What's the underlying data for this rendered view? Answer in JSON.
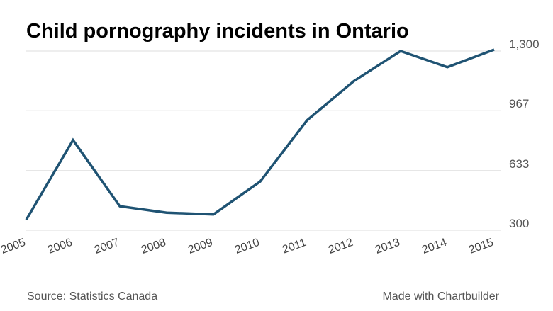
{
  "chart_data": {
    "type": "line",
    "title": "Child pornography incidents in Ontario",
    "xlabel": "",
    "ylabel": "",
    "x": [
      "2005",
      "2006",
      "2007",
      "2008",
      "2009",
      "2010",
      "2011",
      "2012",
      "2013",
      "2014",
      "2015"
    ],
    "series": [
      {
        "values": [
          358,
          803,
          434,
          398,
          388,
          572,
          913,
          1132,
          1300,
          1210,
          1308
        ]
      }
    ],
    "ylim": [
      300,
      1300
    ],
    "yticks": [
      300,
      633,
      967,
      1300
    ],
    "ytick_labels": [
      "300",
      "633",
      "967",
      "1,300"
    ],
    "y_axis_position": "right",
    "grid": true,
    "line_color": "#1f5373",
    "grid_color": "#dddddd"
  },
  "footer": {
    "source": "Source: Statistics Canada",
    "credit": "Made with Chartbuilder"
  }
}
